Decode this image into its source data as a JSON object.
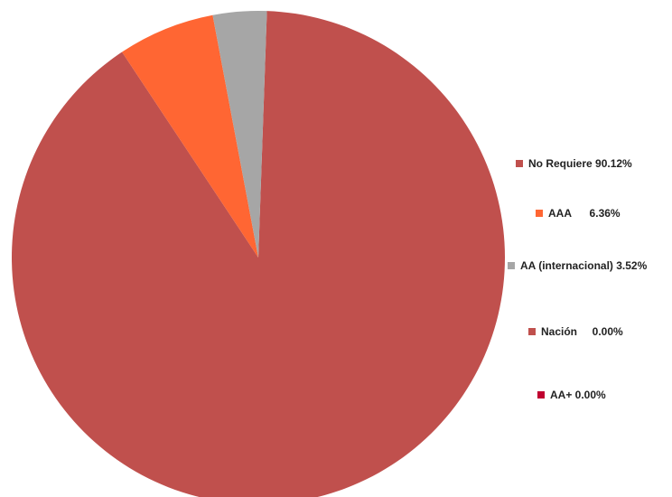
{
  "chart_data": {
    "type": "pie",
    "slices": [
      {
        "label": "No Requiere",
        "value": 90.12,
        "color": "#C0504D",
        "legend_text": "No Requiere 90.12%"
      },
      {
        "label": "AAA",
        "value": 6.36,
        "color": "#FF6633",
        "legend_text": "AAA      6.36%"
      },
      {
        "label": "AA (internacional)",
        "value": 3.52,
        "color": "#A6A6A6",
        "legend_text": "AA (internacional) 3.52%"
      },
      {
        "label": "Nación",
        "value": 0.0,
        "color": "#C0504D",
        "legend_text": "Nación     0.00%"
      },
      {
        "label": "AA+",
        "value": 0.0,
        "color": "#C00030",
        "legend_text": "AA+ 0.00%"
      }
    ],
    "legend_placement": "right"
  }
}
